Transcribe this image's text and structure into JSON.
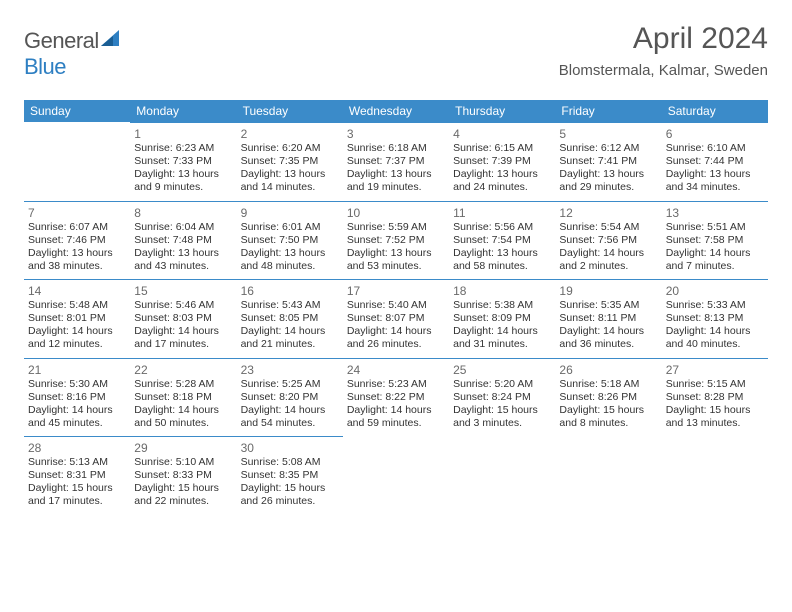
{
  "brand": {
    "name_gray": "General",
    "name_blue": "Blue"
  },
  "title": "April 2024",
  "location": "Blomstermala, Kalmar, Sweden",
  "colors": {
    "header_blue": "#3b8bc9",
    "logo_blue": "#2e7fc2",
    "text_gray": "#555555",
    "body_text": "#333333",
    "background": "#ffffff"
  },
  "day_headers": [
    "Sunday",
    "Monday",
    "Tuesday",
    "Wednesday",
    "Thursday",
    "Friday",
    "Saturday"
  ],
  "weeks": [
    [
      null,
      {
        "d": "1",
        "sr": "Sunrise: 6:23 AM",
        "ss": "Sunset: 7:33 PM",
        "dl": "Daylight: 13 hours and 9 minutes."
      },
      {
        "d": "2",
        "sr": "Sunrise: 6:20 AM",
        "ss": "Sunset: 7:35 PM",
        "dl": "Daylight: 13 hours and 14 minutes."
      },
      {
        "d": "3",
        "sr": "Sunrise: 6:18 AM",
        "ss": "Sunset: 7:37 PM",
        "dl": "Daylight: 13 hours and 19 minutes."
      },
      {
        "d": "4",
        "sr": "Sunrise: 6:15 AM",
        "ss": "Sunset: 7:39 PM",
        "dl": "Daylight: 13 hours and 24 minutes."
      },
      {
        "d": "5",
        "sr": "Sunrise: 6:12 AM",
        "ss": "Sunset: 7:41 PM",
        "dl": "Daylight: 13 hours and 29 minutes."
      },
      {
        "d": "6",
        "sr": "Sunrise: 6:10 AM",
        "ss": "Sunset: 7:44 PM",
        "dl": "Daylight: 13 hours and 34 minutes."
      }
    ],
    [
      {
        "d": "7",
        "sr": "Sunrise: 6:07 AM",
        "ss": "Sunset: 7:46 PM",
        "dl": "Daylight: 13 hours and 38 minutes."
      },
      {
        "d": "8",
        "sr": "Sunrise: 6:04 AM",
        "ss": "Sunset: 7:48 PM",
        "dl": "Daylight: 13 hours and 43 minutes."
      },
      {
        "d": "9",
        "sr": "Sunrise: 6:01 AM",
        "ss": "Sunset: 7:50 PM",
        "dl": "Daylight: 13 hours and 48 minutes."
      },
      {
        "d": "10",
        "sr": "Sunrise: 5:59 AM",
        "ss": "Sunset: 7:52 PM",
        "dl": "Daylight: 13 hours and 53 minutes."
      },
      {
        "d": "11",
        "sr": "Sunrise: 5:56 AM",
        "ss": "Sunset: 7:54 PM",
        "dl": "Daylight: 13 hours and 58 minutes."
      },
      {
        "d": "12",
        "sr": "Sunrise: 5:54 AM",
        "ss": "Sunset: 7:56 PM",
        "dl": "Daylight: 14 hours and 2 minutes."
      },
      {
        "d": "13",
        "sr": "Sunrise: 5:51 AM",
        "ss": "Sunset: 7:58 PM",
        "dl": "Daylight: 14 hours and 7 minutes."
      }
    ],
    [
      {
        "d": "14",
        "sr": "Sunrise: 5:48 AM",
        "ss": "Sunset: 8:01 PM",
        "dl": "Daylight: 14 hours and 12 minutes."
      },
      {
        "d": "15",
        "sr": "Sunrise: 5:46 AM",
        "ss": "Sunset: 8:03 PM",
        "dl": "Daylight: 14 hours and 17 minutes."
      },
      {
        "d": "16",
        "sr": "Sunrise: 5:43 AM",
        "ss": "Sunset: 8:05 PM",
        "dl": "Daylight: 14 hours and 21 minutes."
      },
      {
        "d": "17",
        "sr": "Sunrise: 5:40 AM",
        "ss": "Sunset: 8:07 PM",
        "dl": "Daylight: 14 hours and 26 minutes."
      },
      {
        "d": "18",
        "sr": "Sunrise: 5:38 AM",
        "ss": "Sunset: 8:09 PM",
        "dl": "Daylight: 14 hours and 31 minutes."
      },
      {
        "d": "19",
        "sr": "Sunrise: 5:35 AM",
        "ss": "Sunset: 8:11 PM",
        "dl": "Daylight: 14 hours and 36 minutes."
      },
      {
        "d": "20",
        "sr": "Sunrise: 5:33 AM",
        "ss": "Sunset: 8:13 PM",
        "dl": "Daylight: 14 hours and 40 minutes."
      }
    ],
    [
      {
        "d": "21",
        "sr": "Sunrise: 5:30 AM",
        "ss": "Sunset: 8:16 PM",
        "dl": "Daylight: 14 hours and 45 minutes."
      },
      {
        "d": "22",
        "sr": "Sunrise: 5:28 AM",
        "ss": "Sunset: 8:18 PM",
        "dl": "Daylight: 14 hours and 50 minutes."
      },
      {
        "d": "23",
        "sr": "Sunrise: 5:25 AM",
        "ss": "Sunset: 8:20 PM",
        "dl": "Daylight: 14 hours and 54 minutes."
      },
      {
        "d": "24",
        "sr": "Sunrise: 5:23 AM",
        "ss": "Sunset: 8:22 PM",
        "dl": "Daylight: 14 hours and 59 minutes."
      },
      {
        "d": "25",
        "sr": "Sunrise: 5:20 AM",
        "ss": "Sunset: 8:24 PM",
        "dl": "Daylight: 15 hours and 3 minutes."
      },
      {
        "d": "26",
        "sr": "Sunrise: 5:18 AM",
        "ss": "Sunset: 8:26 PM",
        "dl": "Daylight: 15 hours and 8 minutes."
      },
      {
        "d": "27",
        "sr": "Sunrise: 5:15 AM",
        "ss": "Sunset: 8:28 PM",
        "dl": "Daylight: 15 hours and 13 minutes."
      }
    ],
    [
      {
        "d": "28",
        "sr": "Sunrise: 5:13 AM",
        "ss": "Sunset: 8:31 PM",
        "dl": "Daylight: 15 hours and 17 minutes."
      },
      {
        "d": "29",
        "sr": "Sunrise: 5:10 AM",
        "ss": "Sunset: 8:33 PM",
        "dl": "Daylight: 15 hours and 22 minutes."
      },
      {
        "d": "30",
        "sr": "Sunrise: 5:08 AM",
        "ss": "Sunset: 8:35 PM",
        "dl": "Daylight: 15 hours and 26 minutes."
      },
      null,
      null,
      null,
      null
    ]
  ]
}
